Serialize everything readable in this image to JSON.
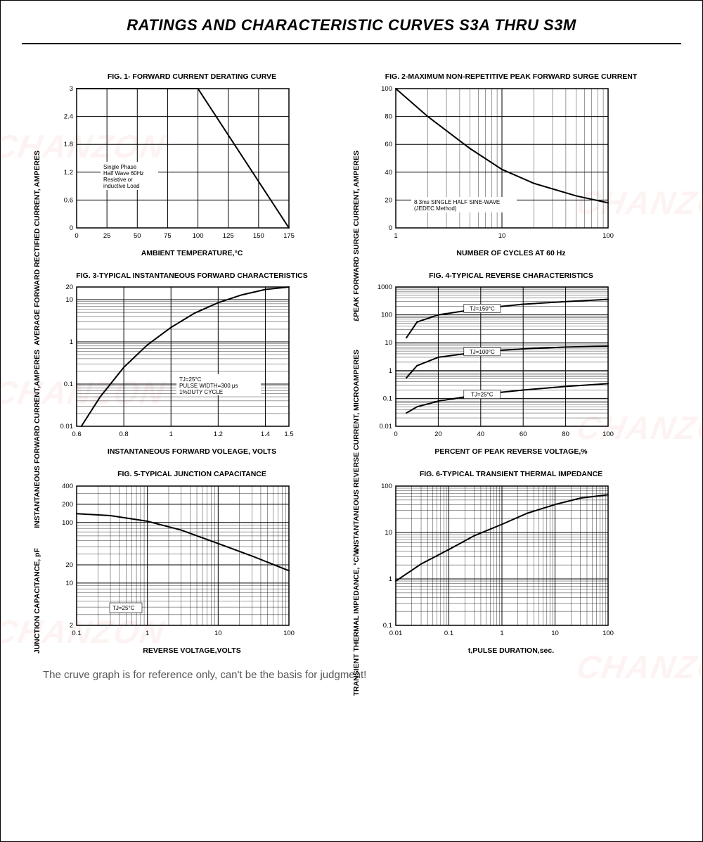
{
  "page": {
    "title": "RATINGS AND CHARACTERISTIC CURVES S3A THRU S3M",
    "footer_note": "The cruve graph is for reference only, can't be the basis for judgment!",
    "watermark_text": "CHANZON",
    "colors": {
      "background": "#ffffff",
      "border": "#000000",
      "grid": "#000000",
      "curve": "#000000",
      "watermark": "rgba(220,50,50,0.06)"
    }
  },
  "fig1": {
    "title": "FIG. 1- FORWARD CURRENT DERATING CURVE",
    "xlabel": "AMBIENT TEMPERATURE,°C",
    "ylabel": "AVERAGE FORWARD RECTIFIED CURRENT, AMPERES",
    "type": "line",
    "xscale": "linear",
    "yscale": "linear",
    "xlim": [
      0,
      175
    ],
    "ylim": [
      0,
      3.0
    ],
    "xticks": [
      0,
      25,
      50,
      75,
      100,
      125,
      150,
      175
    ],
    "yticks": [
      0,
      0.6,
      1.2,
      1.8,
      2.4,
      3.0
    ],
    "series": [
      {
        "x": [
          0,
          100,
          175
        ],
        "y": [
          3.0,
          3.0,
          0.0
        ]
      }
    ],
    "annotation": "Single Phase Half Wave 60Hz Resistive or inductive Load",
    "line_width": 2
  },
  "fig2": {
    "title": "FIG. 2-MAXIMUM NON-REPETITIVE PEAK FORWARD SURGE CURRENT",
    "xlabel": "NUMBER OF CYCLES AT 60 Hz",
    "ylabel": "£PEAK  FORWARD SURGE CURRENT, AMPERES",
    "type": "line",
    "xscale": "log",
    "yscale": "linear",
    "xlim": [
      1,
      100
    ],
    "ylim": [
      0,
      100
    ],
    "xticks": [
      1,
      10,
      100
    ],
    "yticks": [
      0,
      20,
      40,
      60,
      80,
      100
    ],
    "series": [
      {
        "x": [
          1,
          2,
          5,
          10,
          20,
          50,
          100
        ],
        "y": [
          100,
          80,
          57,
          42,
          32,
          23,
          18
        ]
      }
    ],
    "annotation": "8.3ms SINGLE HALF SINE-WAVE (JEDEC Method)",
    "line_width": 2
  },
  "fig3": {
    "title": "FIG. 3-TYPICAL INSTANTANEOUS FORWARD CHARACTERISTICS",
    "xlabel": "INSTANTANEOUS FORWARD VOLEAGE, VOLTS",
    "ylabel": "INSTANTANEOUS FORWARD CURRENT,AMPERES",
    "type": "line",
    "xscale": "linear",
    "yscale": "log",
    "xlim": [
      0.6,
      1.5
    ],
    "ylim": [
      0.01,
      20
    ],
    "xticks": [
      0.6,
      0.8,
      1.0,
      1.2,
      1.4,
      1.5
    ],
    "yticks": [
      0.01,
      0.1,
      1,
      10,
      20
    ],
    "series": [
      {
        "x": [
          0.62,
          0.7,
          0.8,
          0.9,
          1.0,
          1.1,
          1.2,
          1.3,
          1.4,
          1.5
        ],
        "y": [
          0.01,
          0.05,
          0.25,
          0.85,
          2.2,
          4.8,
          8.5,
          13,
          17.5,
          20
        ]
      }
    ],
    "annotation": "TJ=25°C PULSE WIDTH=300 μs 1%DUTY CYCLE",
    "line_width": 2
  },
  "fig4": {
    "title": "FIG. 4-TYPICAL REVERSE CHARACTERISTICS",
    "xlabel": "PERCENT OF PEAK REVERSE VOLTAGE,%",
    "ylabel": "INSTANTANEOUS REVERSE CURRENT, MICROAMPERES",
    "type": "multi-line",
    "xscale": "linear",
    "yscale": "log",
    "xlim": [
      0,
      100
    ],
    "ylim": [
      0.01,
      1000
    ],
    "xticks": [
      0,
      20,
      40,
      60,
      80,
      100
    ],
    "yticks": [
      0.01,
      0.1,
      1,
      10,
      100,
      1000
    ],
    "series": [
      {
        "label": "TJ=150°C",
        "x": [
          5,
          10,
          20,
          40,
          60,
          80,
          100
        ],
        "y": [
          15,
          55,
          100,
          170,
          240,
          300,
          360
        ]
      },
      {
        "label": "TJ=100°C",
        "x": [
          5,
          10,
          20,
          40,
          60,
          80,
          100
        ],
        "y": [
          0.55,
          1.5,
          3.0,
          4.8,
          6.0,
          7.0,
          7.5
        ]
      },
      {
        "label": "TJ=25°C",
        "x": [
          5,
          10,
          20,
          40,
          60,
          80,
          100
        ],
        "y": [
          0.03,
          0.05,
          0.08,
          0.14,
          0.2,
          0.27,
          0.34
        ]
      }
    ],
    "line_width": 2
  },
  "fig5": {
    "title": "FIG. 5-TYPICAL JUNCTION CAPACITANCE",
    "xlabel": "REVERSE VOLTAGE,VOLTS",
    "ylabel": "JUNCTION CAPACITANCE, pF",
    "type": "line",
    "xscale": "log",
    "yscale": "log",
    "xlim": [
      0.1,
      100
    ],
    "ylim": [
      2,
      400
    ],
    "xticks": [
      0.1,
      1.0,
      10,
      100
    ],
    "yticks": [
      2,
      10,
      20,
      100,
      200,
      400
    ],
    "series": [
      {
        "x": [
          0.1,
          0.3,
          1,
          3,
          10,
          30,
          100
        ],
        "y": [
          140,
          130,
          105,
          75,
          45,
          28,
          16
        ]
      }
    ],
    "annotation": "TJ=25°C",
    "line_width": 2
  },
  "fig6": {
    "title": "FIG. 6-TYPICAL TRANSIENT THERMAL IMPEDANCE",
    "xlabel": "t,PULSE DURATION,sec.",
    "ylabel": "TRANSIENT THERMAL IMPEDANCE, °C/W",
    "type": "line",
    "xscale": "log",
    "yscale": "log",
    "xlim": [
      0.01,
      100
    ],
    "ylim": [
      0.1,
      100
    ],
    "xticks": [
      0.01,
      0.1,
      1,
      10,
      100
    ],
    "yticks": [
      0.1,
      1,
      10,
      100
    ],
    "series": [
      {
        "x": [
          0.01,
          0.03,
          0.1,
          0.3,
          1,
          3,
          10,
          30,
          100
        ],
        "y": [
          0.9,
          2.1,
          4.3,
          8.5,
          15,
          26,
          40,
          55,
          65
        ]
      }
    ],
    "line_width": 2
  }
}
